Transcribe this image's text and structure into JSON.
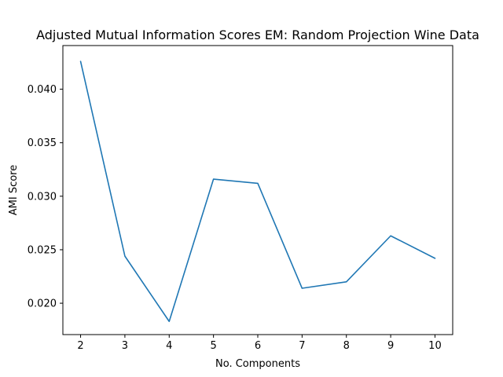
{
  "chart_data": {
    "type": "line",
    "title": "Adjusted Mutual Information Scores EM: Random Projection Wine Data",
    "xlabel": "No. Components",
    "ylabel": "AMI Score",
    "x": [
      2,
      3,
      4,
      5,
      6,
      7,
      8,
      9,
      10
    ],
    "series": [
      {
        "values": [
          0.0426,
          0.0244,
          0.0183,
          0.0316,
          0.0312,
          0.0214,
          0.022,
          0.0263,
          0.0242
        ],
        "color": "#1f77b4"
      }
    ],
    "xlim": [
      1.6,
      10.4
    ],
    "ylim": [
      0.01707,
      0.04408
    ],
    "xticks": [
      "2",
      "3",
      "4",
      "5",
      "6",
      "7",
      "8",
      "9",
      "10"
    ],
    "yticks": [
      "0.020",
      "0.025",
      "0.030",
      "0.035",
      "0.040"
    ],
    "ytick_values": [
      0.02,
      0.025,
      0.03,
      0.035,
      0.04
    ],
    "grid": false,
    "legend": "none"
  }
}
